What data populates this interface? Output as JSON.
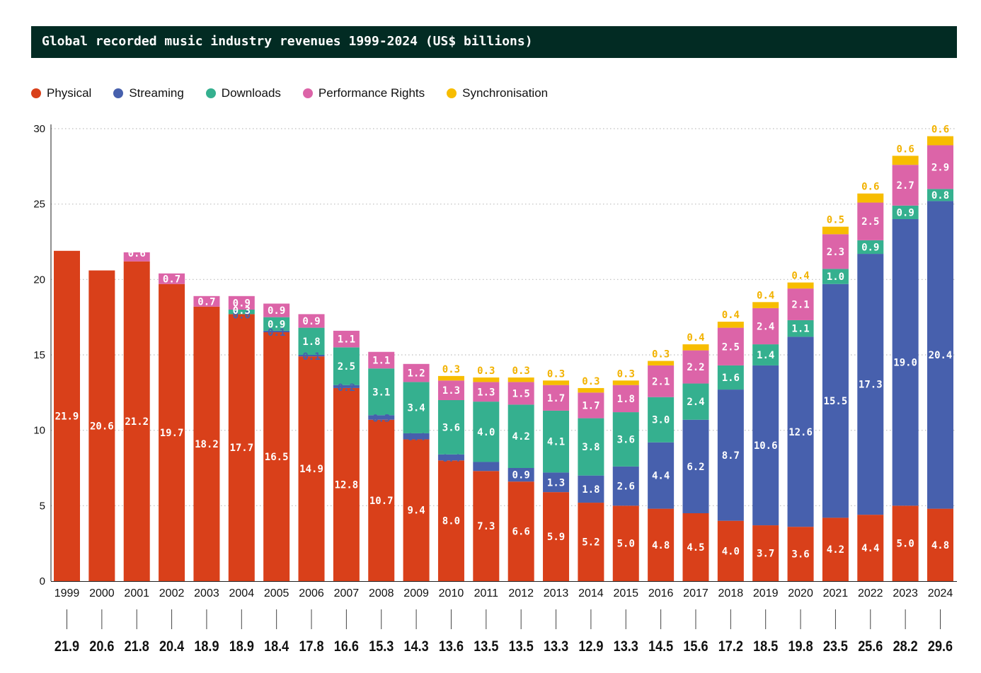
{
  "title": "Global recorded music industry revenues 1999-2024 (US$ billions)",
  "colors": {
    "Physical": "#d9401a",
    "Streaming": "#4760ad",
    "Downloads": "#35b08f",
    "Performance Rights": "#dc64a8",
    "Synchronisation": "#f7bd00",
    "title_bg": "#022b23"
  },
  "legend": [
    {
      "label": "Physical",
      "color": "#d9401a"
    },
    {
      "label": "Streaming",
      "color": "#4760ad"
    },
    {
      "label": "Downloads",
      "color": "#35b08f"
    },
    {
      "label": "Performance Rights",
      "color": "#dc64a8"
    },
    {
      "label": "Synchronisation",
      "color": "#f7bd00"
    }
  ],
  "chart_data": {
    "type": "bar",
    "stacked": true,
    "title": "Global recorded music industry revenues 1999-2024 (US$ billions)",
    "ylim": [
      0,
      30
    ],
    "yticks": [
      0,
      5,
      10,
      15,
      20,
      25,
      30
    ],
    "grid": "horizontal dotted",
    "legend_position": "top-left",
    "categories": [
      "1999",
      "2000",
      "2001",
      "2002",
      "2003",
      "2004",
      "2005",
      "2006",
      "2007",
      "2008",
      "2009",
      "2010",
      "2011",
      "2012",
      "2013",
      "2014",
      "2015",
      "2016",
      "2017",
      "2018",
      "2019",
      "2020",
      "2021",
      "2022",
      "2023",
      "2024"
    ],
    "totals": [
      "21.9",
      "20.6",
      "21.8",
      "20.4",
      "18.9",
      "18.9",
      "18.4",
      "17.8",
      "16.6",
      "15.3",
      "14.3",
      "13.6",
      "13.5",
      "13.5",
      "13.3",
      "12.9",
      "13.3",
      "14.5",
      "15.6",
      "17.2",
      "18.5",
      "19.8",
      "23.5",
      "25.6",
      "28.2",
      "29.6"
    ],
    "series": [
      {
        "name": "Physical",
        "values": [
          21.9,
          20.6,
          21.2,
          19.7,
          18.2,
          17.7,
          16.5,
          14.9,
          12.8,
          10.7,
          9.4,
          8.0,
          7.3,
          6.6,
          5.9,
          5.2,
          5.0,
          4.8,
          4.5,
          4.0,
          3.7,
          3.6,
          4.2,
          4.4,
          5.0,
          4.8
        ]
      },
      {
        "name": "Streaming",
        "values": [
          null,
          null,
          null,
          null,
          null,
          0.0,
          0.1,
          0.1,
          0.2,
          0.3,
          0.4,
          0.4,
          0.6,
          0.9,
          1.3,
          1.8,
          2.6,
          4.4,
          6.2,
          8.7,
          10.6,
          12.6,
          15.5,
          17.3,
          19.0,
          20.4
        ]
      },
      {
        "name": "Downloads",
        "values": [
          null,
          null,
          null,
          null,
          null,
          0.3,
          0.9,
          1.8,
          2.5,
          3.1,
          3.4,
          3.6,
          4.0,
          4.2,
          4.1,
          3.8,
          3.6,
          3.0,
          2.4,
          1.6,
          1.4,
          1.1,
          1.0,
          0.9,
          0.9,
          0.8
        ]
      },
      {
        "name": "Performance Rights",
        "values": [
          null,
          null,
          0.6,
          0.7,
          0.7,
          0.9,
          0.9,
          0.9,
          1.1,
          1.1,
          1.2,
          1.3,
          1.3,
          1.5,
          1.7,
          1.7,
          1.8,
          2.1,
          2.2,
          2.5,
          2.4,
          2.1,
          2.3,
          2.5,
          2.7,
          2.9
        ]
      },
      {
        "name": "Synchronisation",
        "values": [
          null,
          null,
          null,
          null,
          null,
          null,
          null,
          null,
          null,
          null,
          null,
          0.3,
          0.3,
          0.3,
          0.3,
          0.3,
          0.3,
          0.3,
          0.4,
          0.4,
          0.4,
          0.4,
          0.5,
          0.6,
          0.6,
          0.6
        ]
      }
    ]
  }
}
